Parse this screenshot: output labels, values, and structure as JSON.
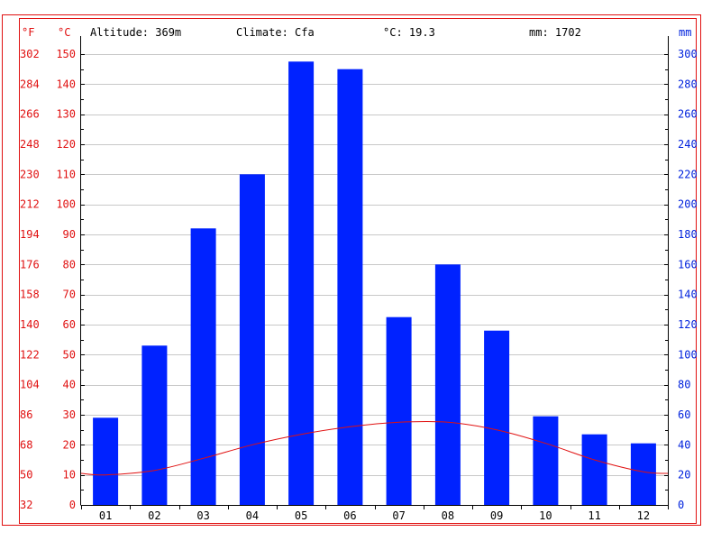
{
  "header": {
    "altitude": "Altitude: 369m",
    "climate": "Climate: Cfa",
    "temp": "°C: 19.3",
    "precip": "mm: 1702"
  },
  "axes": {
    "f_unit": "°F",
    "c_unit": "°C",
    "mm_unit": "mm",
    "left_f_ticks": [
      "302",
      "284",
      "266",
      "248",
      "230",
      "212",
      "194",
      "176",
      "158",
      "140",
      "122",
      "104",
      "86",
      "68",
      "50",
      "32"
    ],
    "left_c_ticks": [
      "150",
      "140",
      "130",
      "120",
      "110",
      "100",
      "90",
      "80",
      "70",
      "60",
      "50",
      "40",
      "30",
      "20",
      "10",
      "0"
    ],
    "right_mm_ticks": [
      "300",
      "280",
      "260",
      "240",
      "220",
      "200",
      "180",
      "160",
      "140",
      "120",
      "100",
      "80",
      "60",
      "40",
      "20",
      "0"
    ]
  },
  "colors": {
    "precip_bar": "#0022ff",
    "temp_line": "#e01010",
    "left_axis_text": "#e01010",
    "right_axis_text": "#0022dd",
    "frame": "#e01010"
  },
  "chart_data": {
    "type": "bar",
    "categories": [
      "01",
      "02",
      "03",
      "04",
      "05",
      "06",
      "07",
      "08",
      "09",
      "10",
      "11",
      "12"
    ],
    "series": [
      {
        "axis": "right_mm",
        "type": "bar",
        "values": [
          58,
          106,
          184,
          220,
          295,
          290,
          125,
          160,
          116,
          59,
          47,
          41
        ]
      },
      {
        "axis": "left_c",
        "type": "line",
        "values": [
          10.0,
          11.5,
          15.5,
          20.0,
          23.5,
          26.0,
          27.5,
          27.5,
          25.0,
          20.5,
          15.0,
          11.0
        ]
      }
    ],
    "ylim_c": [
      0,
      150
    ],
    "ylim_mm": [
      0,
      300
    ],
    "grid": true
  }
}
